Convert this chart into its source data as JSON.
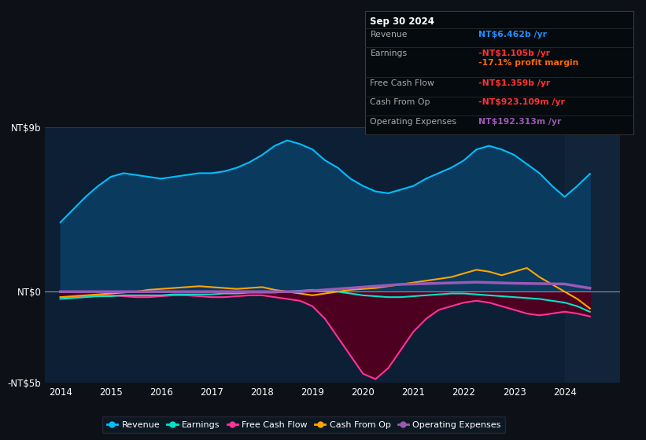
{
  "bg_color": "#0d1117",
  "plot_bg_color": "#0d1f35",
  "title": "Sep 30 2024",
  "years": [
    2014.0,
    2014.25,
    2014.5,
    2014.75,
    2015.0,
    2015.25,
    2015.5,
    2015.75,
    2016.0,
    2016.25,
    2016.5,
    2016.75,
    2017.0,
    2017.25,
    2017.5,
    2017.75,
    2018.0,
    2018.25,
    2018.5,
    2018.75,
    2019.0,
    2019.25,
    2019.5,
    2019.75,
    2020.0,
    2020.25,
    2020.5,
    2020.75,
    2021.0,
    2021.25,
    2021.5,
    2021.75,
    2022.0,
    2022.25,
    2022.5,
    2022.75,
    2023.0,
    2023.25,
    2023.5,
    2023.75,
    2024.0,
    2024.25,
    2024.5
  ],
  "revenue": [
    3.8,
    4.5,
    5.2,
    5.8,
    6.3,
    6.5,
    6.4,
    6.3,
    6.2,
    6.3,
    6.4,
    6.5,
    6.5,
    6.6,
    6.8,
    7.1,
    7.5,
    8.0,
    8.3,
    8.1,
    7.8,
    7.2,
    6.8,
    6.2,
    5.8,
    5.5,
    5.4,
    5.6,
    5.8,
    6.2,
    6.5,
    6.8,
    7.2,
    7.8,
    8.0,
    7.8,
    7.5,
    7.0,
    6.5,
    5.8,
    5.2,
    5.8,
    6.462
  ],
  "earnings": [
    -0.4,
    -0.35,
    -0.3,
    -0.25,
    -0.25,
    -0.2,
    -0.2,
    -0.2,
    -0.2,
    -0.15,
    -0.15,
    -0.15,
    -0.15,
    -0.1,
    -0.1,
    -0.05,
    -0.05,
    -0.05,
    0.0,
    0.05,
    0.1,
    0.05,
    0.0,
    -0.1,
    -0.2,
    -0.25,
    -0.3,
    -0.3,
    -0.25,
    -0.2,
    -0.15,
    -0.1,
    -0.1,
    -0.15,
    -0.2,
    -0.25,
    -0.3,
    -0.35,
    -0.4,
    -0.5,
    -0.6,
    -0.8,
    -1.105
  ],
  "free_cash_flow": [
    -0.3,
    -0.3,
    -0.25,
    -0.2,
    -0.2,
    -0.25,
    -0.3,
    -0.3,
    -0.25,
    -0.2,
    -0.2,
    -0.25,
    -0.3,
    -0.3,
    -0.25,
    -0.2,
    -0.2,
    -0.3,
    -0.4,
    -0.5,
    -0.8,
    -1.5,
    -2.5,
    -3.5,
    -4.5,
    -4.8,
    -4.2,
    -3.2,
    -2.2,
    -1.5,
    -1.0,
    -0.8,
    -0.6,
    -0.5,
    -0.6,
    -0.8,
    -1.0,
    -1.2,
    -1.3,
    -1.2,
    -1.1,
    -1.2,
    -1.359
  ],
  "cash_from_op": [
    -0.3,
    -0.25,
    -0.2,
    -0.15,
    -0.1,
    -0.05,
    0.0,
    0.1,
    0.15,
    0.2,
    0.25,
    0.3,
    0.25,
    0.2,
    0.15,
    0.2,
    0.25,
    0.1,
    0.0,
    -0.1,
    -0.2,
    -0.1,
    0.0,
    0.1,
    0.15,
    0.2,
    0.3,
    0.4,
    0.5,
    0.6,
    0.7,
    0.8,
    1.0,
    1.2,
    1.1,
    0.9,
    1.1,
    1.3,
    0.8,
    0.4,
    0.0,
    -0.4,
    -0.923
  ],
  "operating_expenses": [
    0.0,
    0.0,
    0.0,
    0.0,
    0.0,
    0.0,
    0.0,
    0.0,
    0.0,
    0.0,
    0.0,
    0.0,
    0.0,
    0.0,
    0.0,
    0.0,
    0.0,
    0.0,
    0.0,
    0.0,
    0.05,
    0.1,
    0.15,
    0.2,
    0.25,
    0.3,
    0.35,
    0.4,
    0.42,
    0.44,
    0.46,
    0.48,
    0.5,
    0.52,
    0.5,
    0.48,
    0.46,
    0.45,
    0.44,
    0.43,
    0.42,
    0.3,
    0.1923
  ],
  "ylim": [
    -5,
    9
  ],
  "ytick_positions": [
    -5,
    0,
    9
  ],
  "ytick_labels": [
    "-NT$5b",
    "NT$0",
    "NT$9b"
  ],
  "xticks": [
    2014,
    2015,
    2016,
    2017,
    2018,
    2019,
    2020,
    2021,
    2022,
    2023,
    2024
  ],
  "revenue_color": "#00bfff",
  "revenue_fill_color": "#0a3a5e",
  "earnings_color": "#00e5c8",
  "fcf_color": "#ff3399",
  "fcf_fill_color": "#4d0020",
  "cashop_color": "#ffa500",
  "opex_color": "#9b59b6",
  "shade_start": 2024.0,
  "shade_color": "#1a2f45",
  "tooltip_rows": [
    {
      "label": "Revenue",
      "value": "NT$6.462b /yr",
      "value_color": "#1e90ff",
      "sub": null,
      "sub_color": null
    },
    {
      "label": "Earnings",
      "value": "-NT$1.105b /yr",
      "value_color": "#ff3333",
      "sub": "-17.1% profit margin",
      "sub_color": "#ff6600"
    },
    {
      "label": "Free Cash Flow",
      "value": "-NT$1.359b /yr",
      "value_color": "#ff3333",
      "sub": null,
      "sub_color": null
    },
    {
      "label": "Cash From Op",
      "value": "-NT$923.109m /yr",
      "value_color": "#ff3333",
      "sub": null,
      "sub_color": null
    },
    {
      "label": "Operating Expenses",
      "value": "NT$192.313m /yr",
      "value_color": "#9b59b6",
      "sub": null,
      "sub_color": null
    }
  ],
  "legend_items": [
    "Revenue",
    "Earnings",
    "Free Cash Flow",
    "Cash From Op",
    "Operating Expenses"
  ],
  "legend_colors": [
    "#00bfff",
    "#00e5c8",
    "#ff3399",
    "#ffa500",
    "#9b59b6"
  ]
}
